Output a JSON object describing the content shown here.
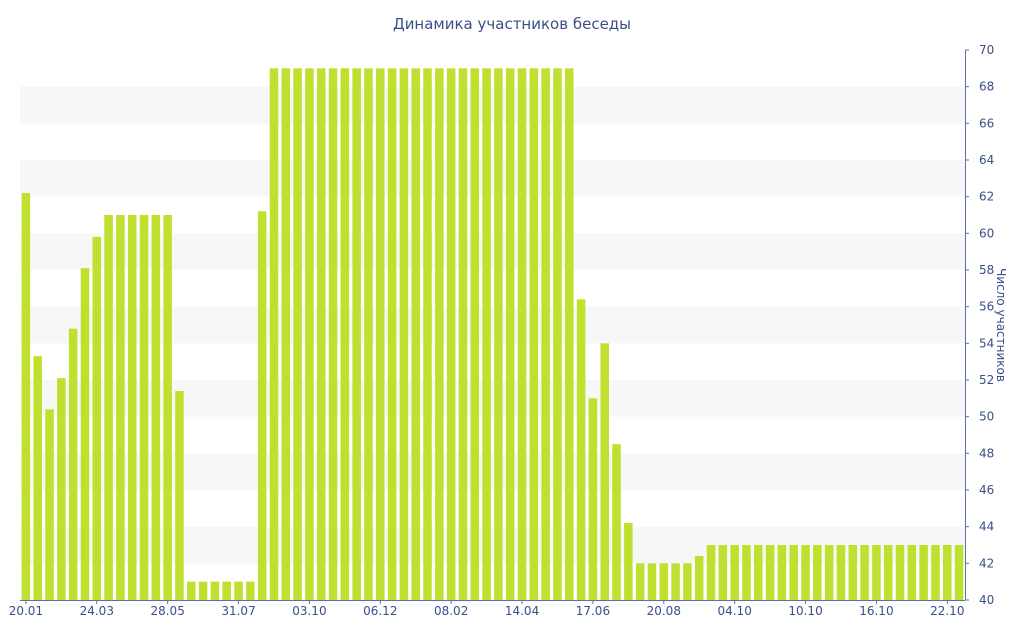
{
  "chart_data": {
    "type": "bar",
    "title": "Динамика участников беседы",
    "xlabel": "",
    "ylabel": "Число участников",
    "ylim": [
      40,
      70
    ],
    "y_ticks": [
      40,
      42,
      44,
      46,
      48,
      50,
      52,
      54,
      56,
      58,
      60,
      62,
      64,
      66,
      68,
      70
    ],
    "y_axis_side": "right",
    "grid": "horizontal alternating bands",
    "x_tick_labels": [
      {
        "index": 0,
        "label": "20.01"
      },
      {
        "index": 6,
        "label": "24.03"
      },
      {
        "index": 12,
        "label": "28.05"
      },
      {
        "index": 18,
        "label": "31.07"
      },
      {
        "index": 24,
        "label": "03.10"
      },
      {
        "index": 30,
        "label": "06.12"
      },
      {
        "index": 36,
        "label": "08.02"
      },
      {
        "index": 42,
        "label": "14.04"
      },
      {
        "index": 48,
        "label": "17.06"
      },
      {
        "index": 54,
        "label": "20.08"
      },
      {
        "index": 60,
        "label": "04.10"
      },
      {
        "index": 66,
        "label": "10.10"
      },
      {
        "index": 72,
        "label": "16.10"
      },
      {
        "index": 78,
        "label": "22.10"
      }
    ],
    "series": [
      {
        "color": "#bfe02e",
        "values": [
          62.2,
          53.3,
          50.4,
          52.1,
          54.8,
          58.1,
          59.8,
          61,
          61,
          61,
          61,
          61,
          61,
          51.4,
          41,
          41,
          41,
          41,
          41,
          41,
          61.2,
          69,
          69,
          69,
          69,
          69,
          69,
          69,
          69,
          69,
          69,
          69,
          69,
          69,
          69,
          69,
          69,
          69,
          69,
          69,
          69,
          69,
          69,
          69,
          69,
          69,
          69,
          56.4,
          51,
          54,
          48.5,
          44.2,
          42,
          42,
          42,
          42,
          42,
          42.4,
          43,
          43,
          43,
          43,
          43,
          43,
          43,
          43,
          43,
          43,
          43,
          43,
          43,
          43,
          43,
          43,
          43,
          43,
          43,
          43,
          43,
          43
        ]
      }
    ]
  },
  "colors": {
    "bar": "#bfe02e",
    "text": "#3a4f8a",
    "axis": "#5a6fae",
    "band": "#f7f7f7"
  }
}
